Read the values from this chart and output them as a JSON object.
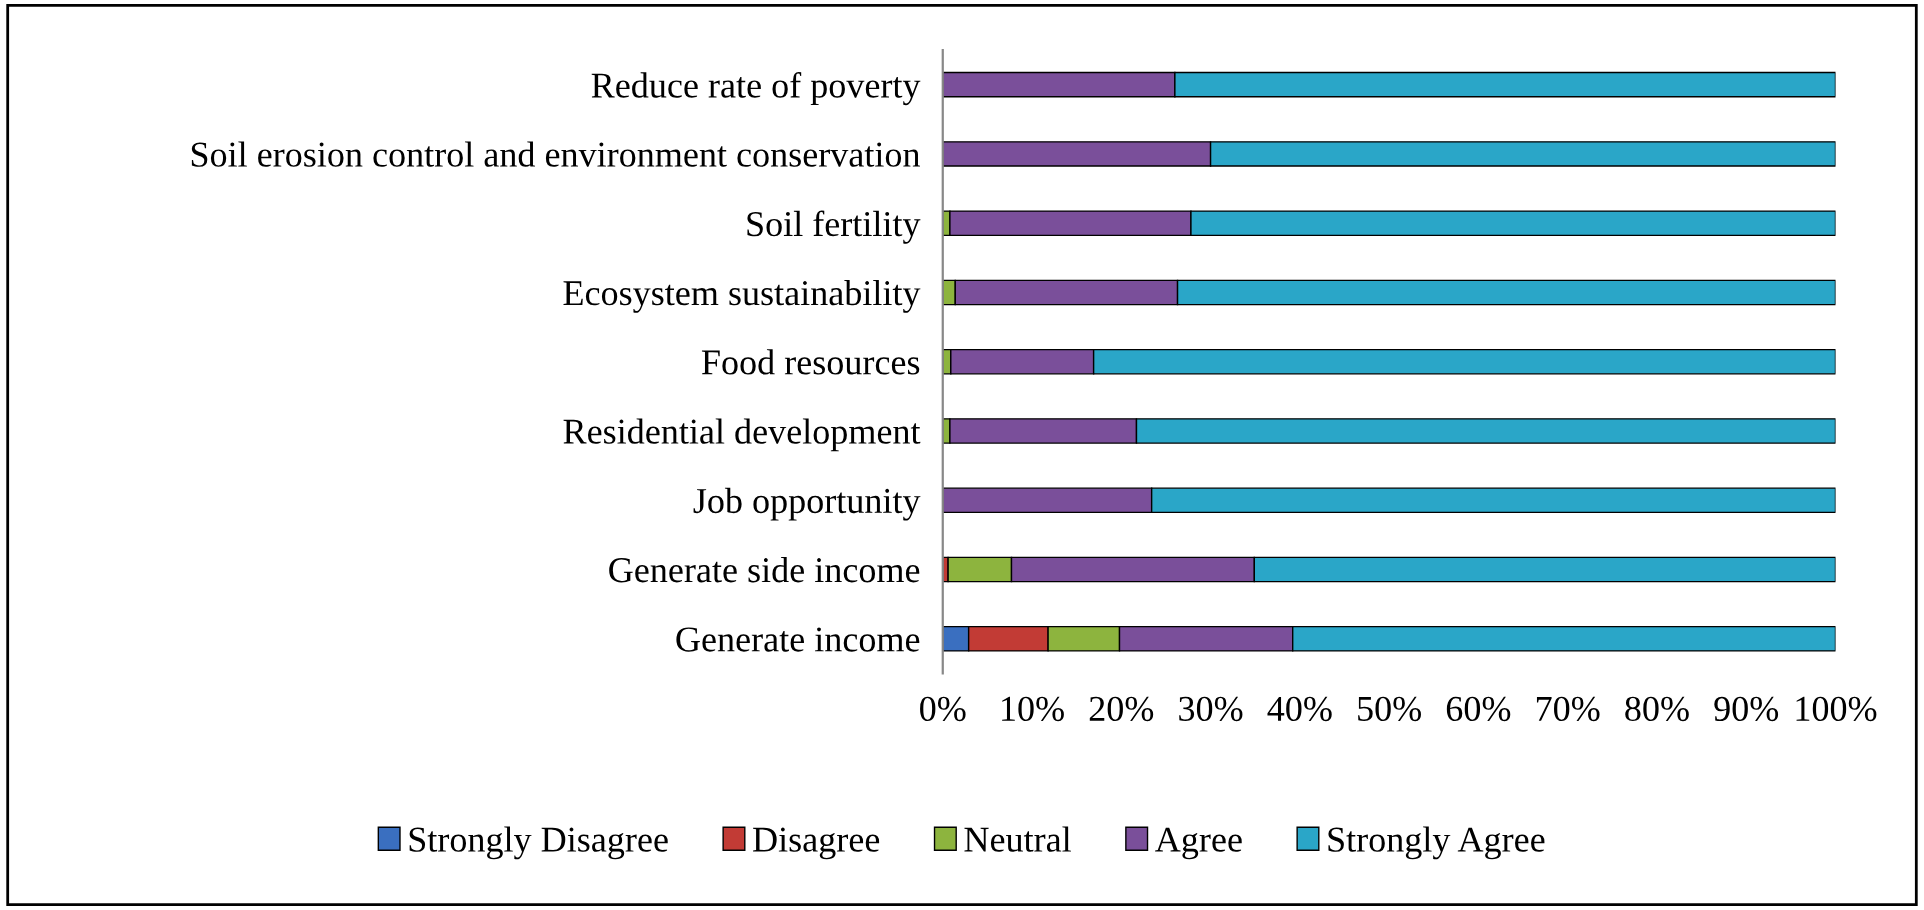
{
  "chart_data": {
    "type": "bar",
    "orientation": "horizontal",
    "stacked": true,
    "categories": [
      "Reduce rate of poverty",
      "Soil erosion control and environment conservation",
      "Soil fertility",
      "Ecosystem sustainability",
      "Food resources",
      "Residential development",
      "Job opportunity",
      "Generate side income",
      "Generate income"
    ],
    "series": [
      {
        "name": "Strongly Disagree",
        "color": "#3a6fc0",
        "values": [
          0,
          0,
          0,
          0,
          0,
          0,
          0,
          0,
          2.9
        ]
      },
      {
        "name": "Disagree",
        "color": "#c23b35",
        "values": [
          0,
          0,
          0,
          0,
          0,
          0,
          0,
          0.6,
          8.9
        ]
      },
      {
        "name": "Neutral",
        "color": "#8db43e",
        "values": [
          0,
          0,
          0.8,
          1.4,
          0.9,
          0.8,
          0,
          7.1,
          8
        ]
      },
      {
        "name": "Agree",
        "color": "#7a4f9a",
        "values": [
          26,
          30,
          27,
          24.9,
          16,
          20.9,
          23.4,
          27.2,
          19.4
        ]
      },
      {
        "name": "Strongly Agree",
        "color": "#2aa6c8",
        "values": [
          74,
          70,
          72.2,
          73.7,
          83.1,
          78.3,
          76.6,
          65.1,
          60.8
        ]
      }
    ],
    "xlim": [
      0,
      100
    ],
    "xticks": [
      {
        "value": 0,
        "label": "0%"
      },
      {
        "value": 10,
        "label": "10%"
      },
      {
        "value": 20,
        "label": "20%"
      },
      {
        "value": 30,
        "label": "30%"
      },
      {
        "value": 40,
        "label": "40%"
      },
      {
        "value": 50,
        "label": "50%"
      },
      {
        "value": 60,
        "label": "60%"
      },
      {
        "value": 70,
        "label": "70%"
      },
      {
        "value": 80,
        "label": "80%"
      },
      {
        "value": 90,
        "label": "90%"
      },
      {
        "value": 100,
        "label": "100%"
      }
    ],
    "grid": false,
    "legend": "bottom"
  }
}
